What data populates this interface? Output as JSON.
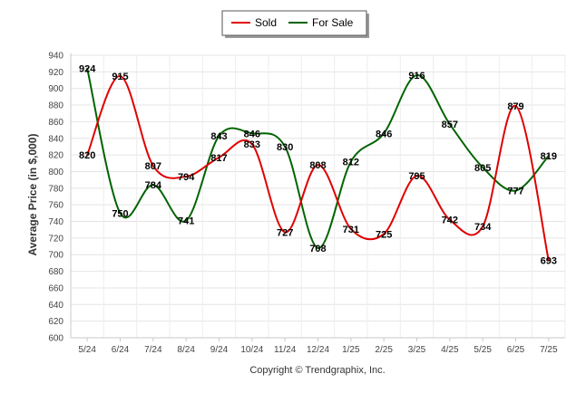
{
  "chart_data": {
    "type": "line",
    "categories": [
      "5/24",
      "6/24",
      "7/24",
      "8/24",
      "9/24",
      "10/24",
      "11/24",
      "12/24",
      "1/25",
      "2/25",
      "3/25",
      "4/25",
      "5/25",
      "6/25",
      "7/25"
    ],
    "series": [
      {
        "name": "Sold",
        "color": "#e00000",
        "values": [
          820,
          915,
          807,
          794,
          817,
          833,
          727,
          808,
          731,
          725,
          795,
          742,
          734,
          879,
          693
        ]
      },
      {
        "name": "For Sale",
        "color": "#006400",
        "values": [
          924,
          750,
          784,
          741,
          843,
          846,
          830,
          708,
          812,
          846,
          916,
          857,
          805,
          777,
          819
        ]
      }
    ],
    "ylabel": "Average Price (in $,000)",
    "ylim": [
      600,
      940
    ],
    "yticks": [
      "600",
      "620",
      "640",
      "660",
      "680",
      "700",
      "720",
      "740",
      "760",
      "780",
      "800",
      "820",
      "840",
      "860",
      "880",
      "900",
      "920",
      "940"
    ],
    "grid": true,
    "legend_position": "top-center",
    "smooth": true
  },
  "footer": {
    "copyright": "Copyright © Trendgraphix, Inc."
  }
}
